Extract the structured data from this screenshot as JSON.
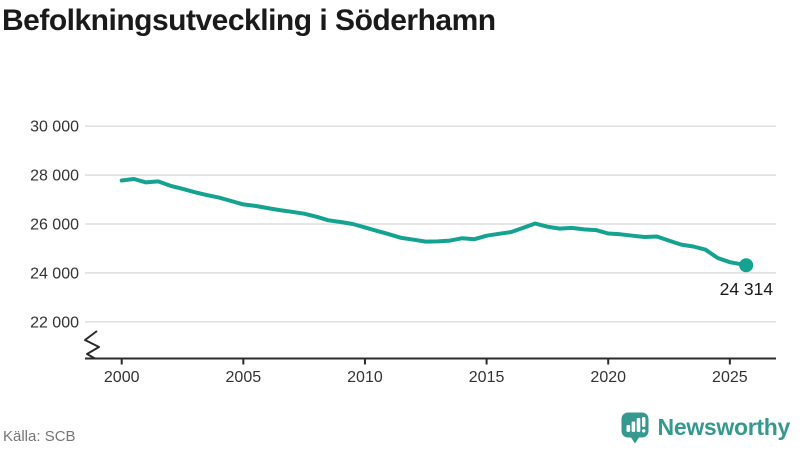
{
  "header": {
    "title": "Befolkningsutveckling i Söderhamn"
  },
  "chart_data": {
    "type": "line",
    "title": "Befolkningsutveckling i Söderhamn",
    "xlabel": "",
    "ylabel": "",
    "grid": "horizontal",
    "axis_break": true,
    "line_color": "#14A390",
    "xlim": [
      1999.5,
      2026.9
    ],
    "ylim": [
      22000,
      30000
    ],
    "yticks": [
      {
        "value": 30000,
        "label": "30 000"
      },
      {
        "value": 28000,
        "label": "28 000"
      },
      {
        "value": 26000,
        "label": "26 000"
      },
      {
        "value": 24000,
        "label": "24 000"
      },
      {
        "value": 22000,
        "label": "22 000"
      }
    ],
    "xticks": [
      {
        "year": 2000,
        "label": "2000"
      },
      {
        "year": 2005,
        "label": "2005"
      },
      {
        "year": 2010,
        "label": "2010"
      },
      {
        "year": 2015,
        "label": "2015"
      },
      {
        "year": 2020,
        "label": "2020"
      },
      {
        "year": 2025,
        "label": "2025"
      }
    ],
    "series": [
      {
        "name": "Befolkning",
        "x": [
          2000,
          2000.5,
          2001,
          2001.5,
          2002,
          2002.5,
          2003,
          2003.5,
          2004,
          2004.5,
          2005,
          2005.5,
          2006,
          2006.5,
          2007,
          2007.5,
          2008,
          2008.5,
          2009,
          2009.5,
          2010,
          2010.5,
          2011,
          2011.5,
          2012,
          2012.5,
          2013,
          2013.5,
          2014,
          2014.5,
          2015,
          2015.5,
          2016,
          2016.5,
          2017,
          2017.5,
          2018,
          2018.5,
          2019,
          2019.5,
          2020,
          2020.5,
          2021,
          2021.5,
          2022,
          2022.5,
          2023,
          2023.5,
          2024,
          2024.5,
          2025,
          2025.67
        ],
        "values": [
          27780,
          27840,
          27700,
          27740,
          27560,
          27440,
          27300,
          27180,
          27080,
          26940,
          26800,
          26740,
          26650,
          26570,
          26500,
          26420,
          26300,
          26150,
          26080,
          26000,
          25860,
          25720,
          25580,
          25430,
          25360,
          25280,
          25290,
          25320,
          25420,
          25380,
          25520,
          25600,
          25670,
          25840,
          26020,
          25890,
          25810,
          25840,
          25780,
          25750,
          25610,
          25580,
          25520,
          25470,
          25490,
          25320,
          25160,
          25080,
          24950,
          24610,
          24440,
          24314
        ]
      }
    ],
    "end_point": {
      "x": 2025.67,
      "value": 24314,
      "label": "24 314"
    }
  },
  "footer": {
    "source": "Källa: SCB",
    "brand": "Newsworthy"
  },
  "colors": {
    "line": "#14A390",
    "logo": "#35998F",
    "title": "#1a1a1a",
    "axis": "#2b2b2b",
    "grid": "#dddddd",
    "tick_label": "#333333",
    "source_text": "#767676",
    "annotation": "#1a1a1a"
  }
}
